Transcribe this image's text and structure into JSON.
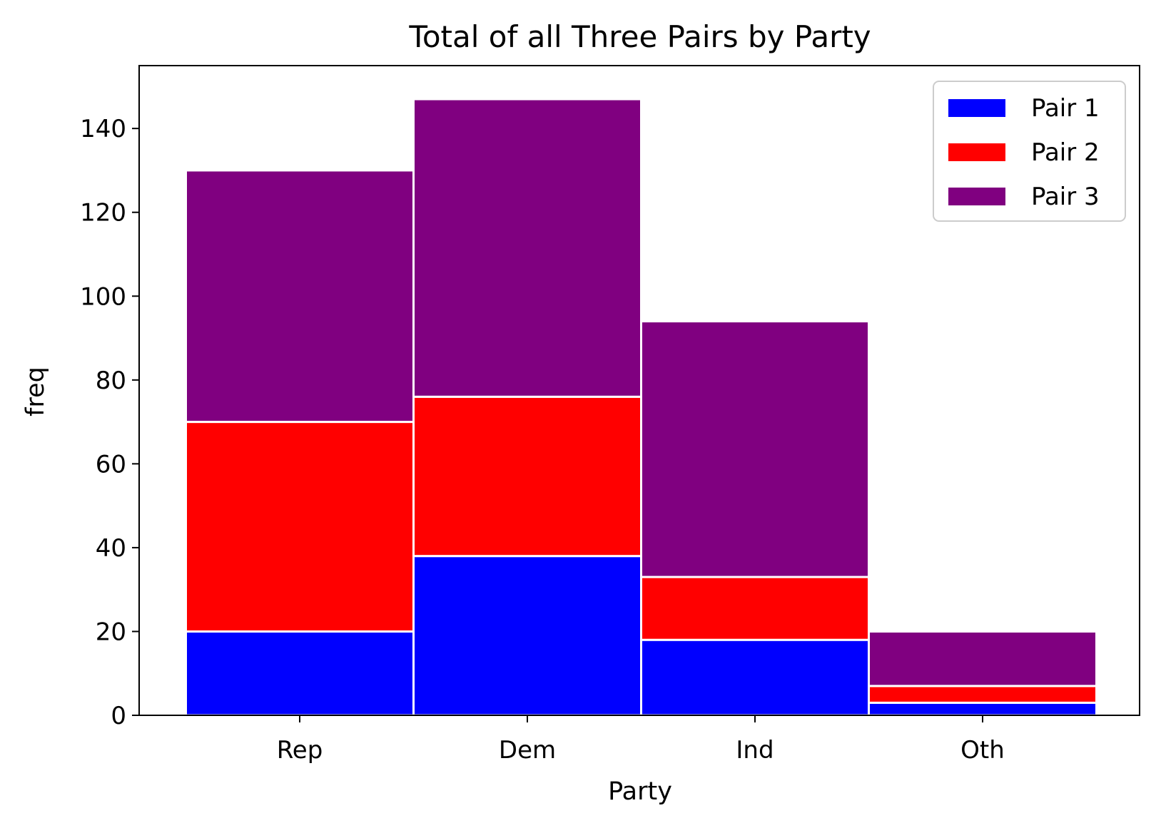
{
  "chart_data": {
    "type": "bar",
    "stacked": true,
    "title": "Total of all Three Pairs by Party",
    "xlabel": "Party",
    "ylabel": "freq",
    "categories": [
      "Rep",
      "Dem",
      "Ind",
      "Oth"
    ],
    "series": [
      {
        "name": "Pair 1",
        "color": "#0000ff",
        "values": [
          20,
          38,
          18,
          3
        ]
      },
      {
        "name": "Pair 2",
        "color": "#ff0000",
        "values": [
          50,
          38,
          15,
          4
        ]
      },
      {
        "name": "Pair 3",
        "color": "#800080",
        "values": [
          60,
          71,
          61,
          13
        ]
      }
    ],
    "ylim": [
      0,
      155
    ],
    "yticks": [
      0,
      20,
      40,
      60,
      80,
      100,
      120,
      140
    ],
    "grid": false,
    "legend_position": "top-right"
  }
}
